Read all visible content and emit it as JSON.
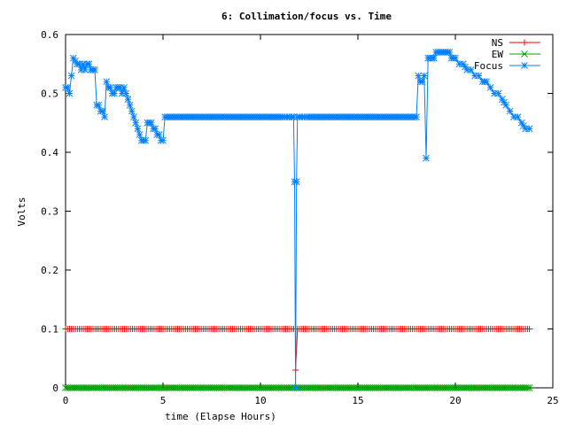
{
  "chart_data": {
    "type": "line",
    "title": "6: Collimation/focus vs. Time",
    "xlabel": "time (Elapse Hours)",
    "ylabel": "Volts",
    "xlim": [
      0,
      25
    ],
    "ylim": [
      0,
      0.6
    ],
    "xticks": [
      0,
      5,
      10,
      15,
      20,
      25
    ],
    "yticks": [
      0,
      0.1,
      0.2,
      0.3,
      0.4,
      0.5,
      0.6
    ],
    "grid": false,
    "legend_position": "top-right",
    "series": [
      {
        "name": "NS",
        "color": "#ff0000",
        "marker": "+",
        "points": [
          [
            0.0,
            0.1
          ],
          [
            11.7,
            0.1
          ],
          [
            11.8,
            0.1
          ],
          [
            11.8,
            0.03
          ],
          [
            11.9,
            0.1
          ],
          [
            23.8,
            0.1
          ]
        ]
      },
      {
        "name": "EW",
        "color": "#00a000",
        "marker": "x",
        "points": [
          [
            0.0,
            0.0
          ],
          [
            23.8,
            0.0
          ]
        ]
      },
      {
        "name": "Focus",
        "color": "#0080ff",
        "marker": "*",
        "points": [
          [
            0.0,
            0.51
          ],
          [
            0.1,
            0.51
          ],
          [
            0.2,
            0.5
          ],
          [
            0.3,
            0.53
          ],
          [
            0.4,
            0.56
          ],
          [
            0.5,
            0.555
          ],
          [
            0.6,
            0.55
          ],
          [
            0.7,
            0.55
          ],
          [
            0.8,
            0.54
          ],
          [
            0.9,
            0.55
          ],
          [
            1.0,
            0.54
          ],
          [
            1.1,
            0.55
          ],
          [
            1.2,
            0.55
          ],
          [
            1.3,
            0.54
          ],
          [
            1.4,
            0.54
          ],
          [
            1.5,
            0.54
          ],
          [
            1.6,
            0.48
          ],
          [
            1.7,
            0.48
          ],
          [
            1.8,
            0.47
          ],
          [
            1.9,
            0.47
          ],
          [
            2.0,
            0.46
          ],
          [
            2.1,
            0.52
          ],
          [
            2.2,
            0.51
          ],
          [
            2.3,
            0.51
          ],
          [
            2.4,
            0.5
          ],
          [
            2.5,
            0.5
          ],
          [
            2.6,
            0.51
          ],
          [
            2.7,
            0.51
          ],
          [
            2.8,
            0.51
          ],
          [
            2.9,
            0.5
          ],
          [
            3.0,
            0.51
          ],
          [
            3.1,
            0.5
          ],
          [
            3.2,
            0.49
          ],
          [
            3.3,
            0.48
          ],
          [
            3.4,
            0.47
          ],
          [
            3.5,
            0.46
          ],
          [
            3.6,
            0.45
          ],
          [
            3.7,
            0.44
          ],
          [
            3.8,
            0.43
          ],
          [
            3.9,
            0.42
          ],
          [
            4.0,
            0.42
          ],
          [
            4.1,
            0.42
          ],
          [
            4.2,
            0.45
          ],
          [
            4.3,
            0.45
          ],
          [
            4.4,
            0.45
          ],
          [
            4.5,
            0.44
          ],
          [
            4.6,
            0.44
          ],
          [
            4.7,
            0.43
          ],
          [
            4.8,
            0.43
          ],
          [
            4.9,
            0.42
          ],
          [
            5.0,
            0.42
          ],
          [
            5.1,
            0.46
          ],
          [
            6.0,
            0.46
          ],
          [
            7.0,
            0.46
          ],
          [
            8.0,
            0.46
          ],
          [
            9.0,
            0.46
          ],
          [
            10.0,
            0.46
          ],
          [
            11.0,
            0.46
          ],
          [
            11.6,
            0.46
          ],
          [
            11.7,
            0.46
          ],
          [
            11.75,
            0.35
          ],
          [
            11.8,
            0.0
          ],
          [
            11.85,
            0.35
          ],
          [
            11.9,
            0.46
          ],
          [
            12.5,
            0.46
          ],
          [
            13.0,
            0.46
          ],
          [
            14.0,
            0.46
          ],
          [
            15.0,
            0.46
          ],
          [
            16.0,
            0.46
          ],
          [
            17.0,
            0.46
          ],
          [
            18.0,
            0.46
          ],
          [
            18.1,
            0.53
          ],
          [
            18.2,
            0.52
          ],
          [
            18.3,
            0.52
          ],
          [
            18.4,
            0.53
          ],
          [
            18.5,
            0.39
          ],
          [
            18.6,
            0.56
          ],
          [
            18.7,
            0.56
          ],
          [
            18.8,
            0.56
          ],
          [
            18.9,
            0.56
          ],
          [
            19.0,
            0.57
          ],
          [
            19.1,
            0.57
          ],
          [
            19.2,
            0.57
          ],
          [
            19.3,
            0.57
          ],
          [
            19.4,
            0.57
          ],
          [
            19.5,
            0.57
          ],
          [
            19.6,
            0.57
          ],
          [
            19.7,
            0.57
          ],
          [
            19.8,
            0.56
          ],
          [
            19.9,
            0.56
          ],
          [
            20.0,
            0.56
          ],
          [
            20.2,
            0.55
          ],
          [
            20.4,
            0.55
          ],
          [
            20.6,
            0.54
          ],
          [
            20.8,
            0.54
          ],
          [
            21.0,
            0.53
          ],
          [
            21.2,
            0.53
          ],
          [
            21.4,
            0.52
          ],
          [
            21.6,
            0.52
          ],
          [
            21.8,
            0.51
          ],
          [
            22.0,
            0.5
          ],
          [
            22.2,
            0.5
          ],
          [
            22.4,
            0.49
          ],
          [
            22.6,
            0.48
          ],
          [
            22.8,
            0.47
          ],
          [
            23.0,
            0.46
          ],
          [
            23.2,
            0.46
          ],
          [
            23.4,
            0.45
          ],
          [
            23.6,
            0.44
          ],
          [
            23.8,
            0.44
          ]
        ]
      }
    ]
  }
}
